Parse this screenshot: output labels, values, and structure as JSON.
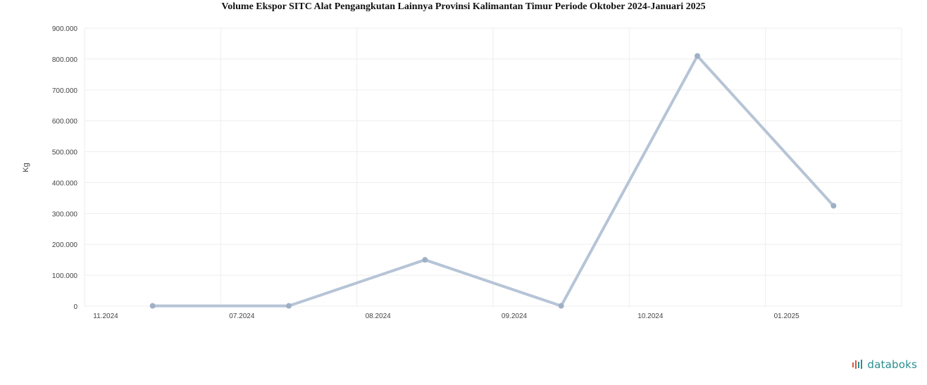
{
  "chart_data": {
    "type": "line",
    "title": "Volume Ekspor SITC Alat Pengangkutan Lainnya Provinsi Kalimantan Timur Periode Oktober 2024-Januari 2025",
    "ylabel": "Kg",
    "ylim": [
      0,
      900000
    ],
    "y_ticks": [
      "0",
      "100.000",
      "200.000",
      "300.000",
      "400.000",
      "500.000",
      "600.000",
      "700.000",
      "800.000",
      "900.000"
    ],
    "x_tick_labels": [
      "11.2024",
      "07.2024",
      "08.2024",
      "09.2024",
      "10.2024",
      "01.2025"
    ],
    "x": [
      "11.2024",
      "07.2024",
      "08.2024",
      "09.2024",
      "10.2024",
      "01.2025"
    ],
    "series": [
      {
        "values": [
          1000,
          1000,
          150000,
          1000,
          810000,
          325000
        ]
      }
    ],
    "grid": true,
    "colors": {
      "line": "#b6c4d6",
      "marker": "#9fb0c6",
      "grid": "#eeeeee"
    }
  },
  "brand": {
    "name": "databoks",
    "color": "#2a8f8f",
    "accent": "#e2533d"
  }
}
